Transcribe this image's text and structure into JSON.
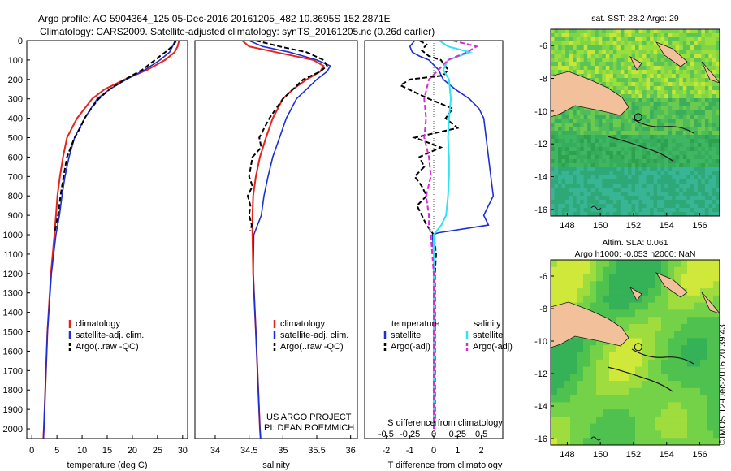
{
  "header": {
    "line1": "Argo profile: AO 5904364_125 05-Dec-2016 20161205_482 10.3695S 152.2871E",
    "line2": "Climatology: CARS2009. Satellite-adjusted climatology: synTS_20161205.nc (0.26d earlier)"
  },
  "depth_ticks": [
    0,
    100,
    200,
    300,
    400,
    500,
    600,
    700,
    800,
    900,
    1000,
    1100,
    1200,
    1300,
    1400,
    1500,
    1600,
    1700,
    1800,
    1900,
    2000
  ],
  "colors": {
    "climatology": "#e8231c",
    "satellite": "#1c2fd4",
    "argo": "#000000",
    "sal_satellite": "#2fe3f0",
    "sal_argo": "#d82ad6",
    "land": "#f2c09a",
    "map_sst_base": "#35b060",
    "map_sla_base": "#6ed84a"
  },
  "chart_data": [
    {
      "type": "line",
      "panel": "temperature",
      "xlabel": "temperature (deg C)",
      "ylabel": "",
      "xlim": [
        -1,
        31
      ],
      "ylim": [
        2050,
        0
      ],
      "xticks": [
        0,
        5,
        10,
        15,
        20,
        25,
        30
      ],
      "legend": [
        "climatology",
        "satellite-adj. clim.",
        "Argo(..raw -QC)"
      ],
      "series": [
        {
          "name": "climatology",
          "depth": [
            0,
            30,
            60,
            100,
            150,
            200,
            250,
            300,
            400,
            500,
            600,
            700,
            800,
            900,
            1000,
            1200,
            1500,
            2000,
            2050
          ],
          "values": [
            29.3,
            29.0,
            28.4,
            26.5,
            23.0,
            18.5,
            14.5,
            12.0,
            9.0,
            7.0,
            6.2,
            5.6,
            5.1,
            4.8,
            4.5,
            3.8,
            3.1,
            2.4,
            2.3
          ]
        },
        {
          "name": "satellite-adj. clim.",
          "depth": [
            0,
            30,
            60,
            100,
            150,
            200,
            250,
            300,
            400,
            500,
            600,
            700,
            800,
            900,
            1000,
            1200,
            1500,
            2000,
            2050
          ],
          "values": [
            28.5,
            28.0,
            27.4,
            25.5,
            22.5,
            18.8,
            15.5,
            13.0,
            10.5,
            8.5,
            7.4,
            6.6,
            6.0,
            5.5,
            4.8,
            3.9,
            3.1,
            2.4,
            2.3
          ]
        },
        {
          "name": "Argo(..raw -QC)",
          "depth": [
            0,
            20,
            50,
            80,
            110,
            150,
            200,
            250,
            300,
            350,
            400,
            450,
            500,
            600,
            700,
            800,
            900,
            980
          ],
          "values": [
            28.7,
            28.3,
            27.0,
            25.5,
            24.0,
            22.0,
            18.5,
            15.5,
            13.3,
            11.8,
            10.5,
            9.6,
            8.5,
            7.0,
            6.3,
            5.7,
            5.2,
            4.6
          ]
        }
      ]
    },
    {
      "type": "line",
      "panel": "salinity",
      "xlabel": "salinity",
      "ylabel": "",
      "xlim": [
        33.7,
        36.1
      ],
      "ylim": [
        2050,
        0
      ],
      "xticks": [
        34,
        34.5,
        35,
        35.5,
        36
      ],
      "legend": [
        "climatology",
        "satellite-adj. clim.",
        "Argo(..raw -QC)"
      ],
      "series": [
        {
          "name": "climatology",
          "depth": [
            0,
            30,
            60,
            100,
            130,
            160,
            200,
            250,
            300,
            400,
            500,
            600,
            700,
            800,
            900,
            1000,
            1200,
            1500,
            2000,
            2050
          ],
          "values": [
            34.4,
            34.5,
            34.9,
            35.45,
            35.6,
            35.55,
            35.35,
            35.15,
            35.0,
            34.85,
            34.75,
            34.66,
            34.6,
            34.56,
            34.55,
            34.55,
            34.56,
            34.6,
            34.66,
            34.67
          ]
        },
        {
          "name": "satellite-adj. clim.",
          "depth": [
            0,
            30,
            60,
            100,
            130,
            160,
            200,
            250,
            300,
            400,
            500,
            600,
            700,
            800,
            900,
            1000,
            1200,
            1500,
            2000,
            2050
          ],
          "values": [
            34.5,
            34.7,
            35.1,
            35.5,
            35.7,
            35.65,
            35.5,
            35.35,
            35.2,
            35.05,
            34.95,
            34.85,
            34.78,
            34.72,
            34.68,
            34.57,
            34.56,
            34.6,
            34.66,
            34.67
          ]
        },
        {
          "name": "Argo(..raw -QC)",
          "depth": [
            0,
            30,
            60,
            100,
            130,
            160,
            200,
            250,
            300,
            400,
            500,
            550,
            600,
            700,
            750,
            800,
            850,
            900,
            950,
            980
          ],
          "values": [
            34.6,
            34.95,
            35.35,
            35.6,
            35.65,
            35.55,
            35.3,
            35.15,
            35.0,
            34.8,
            34.65,
            34.68,
            34.55,
            34.5,
            34.55,
            34.48,
            34.52,
            34.5,
            34.54,
            34.52
          ]
        }
      ]
    },
    {
      "type": "line",
      "panel": "difference",
      "xlabel_top": "S difference from climatology",
      "xlabel": "T difference from climatology",
      "xlim": [
        -2.9,
        2.9
      ],
      "ylim": [
        2050,
        0
      ],
      "xticks_bottom": [
        -2,
        -1,
        0,
        1,
        2
      ],
      "xticks_top": [
        -0.5,
        -0.25,
        0,
        0.25,
        0.5
      ],
      "legend_temperature_title": "temperature",
      "legend_salinity_title": "salinity",
      "legend": [
        "satellite",
        "Argo(-adj)",
        "satellite",
        "Argo(-adj)"
      ],
      "series": [
        {
          "name": "temperature satellite",
          "depth": [
            0,
            30,
            60,
            80,
            100,
            150,
            200,
            250,
            300,
            350,
            400,
            500,
            600,
            700,
            800,
            900,
            950,
            990,
            1000,
            1100,
            1500,
            2000
          ],
          "values": [
            -0.8,
            -1.0,
            -0.9,
            -0.6,
            -0.2,
            0.2,
            0.4,
            0.9,
            1.5,
            1.9,
            2.1,
            2.2,
            2.3,
            2.4,
            2.5,
            2.1,
            2.3,
            0.2,
            -0.05,
            0,
            0,
            0
          ]
        },
        {
          "name": "temperature Argo(-adj)",
          "depth": [
            0,
            20,
            50,
            80,
            100,
            150,
            180,
            200,
            230,
            260,
            300,
            350,
            400,
            450,
            500,
            550,
            600,
            650,
            700,
            750,
            800,
            850,
            900,
            950,
            1000,
            1100,
            1200,
            1400,
            1600,
            1800,
            2000
          ],
          "values": [
            -0.6,
            -0.3,
            -0.5,
            -0.2,
            0.3,
            0.6,
            0.4,
            -1.0,
            -1.4,
            -0.9,
            -0.2,
            0.8,
            0.5,
            1.0,
            -0.8,
            0.3,
            -0.6,
            -0.4,
            -0.8,
            -0.5,
            -0.3,
            -0.7,
            -0.5,
            -0.3,
            0.0,
            0.1,
            0.05,
            0.05,
            0.05,
            0.05,
            0.05
          ]
        },
        {
          "name": "salinity satellite",
          "depth": [
            0,
            30,
            60,
            100,
            150,
            200,
            300,
            400,
            500,
            600,
            700,
            800,
            900,
            950,
            1000,
            1200,
            1500,
            2000
          ],
          "values": [
            0.06,
            0.15,
            0.38,
            0.15,
            0.1,
            0.16,
            0.18,
            0.16,
            0.15,
            0.16,
            0.16,
            0.15,
            0.13,
            0.08,
            0.0,
            0.0,
            0.0,
            0.0
          ]
        },
        {
          "name": "salinity Argo(-adj)",
          "depth": [
            0,
            30,
            60,
            100,
            150,
            200,
            300,
            400,
            500,
            600,
            700,
            800,
            900,
            950,
            1000,
            1200,
            1500,
            2000
          ],
          "values": [
            0.2,
            0.45,
            0.35,
            0.15,
            0.05,
            -0.05,
            -0.1,
            -0.08,
            -0.1,
            -0.05,
            -0.03,
            -0.08,
            -0.05,
            -0.05,
            -0.03,
            0.0,
            0.0,
            0.0
          ]
        }
      ]
    }
  ],
  "maps": {
    "sst_title": "sat. SST: 28.2 Argo: 29",
    "sla_title_line1": "Altim. SLA: 0.061",
    "sla_title_line2": "Argo h1000: -0.053 h2000: NaN",
    "lon_ticks": [
      148,
      150,
      152,
      154,
      156
    ],
    "lat_ticks": [
      -6,
      -8,
      -10,
      -12,
      -14,
      -16
    ],
    "lon_range": [
      147,
      157.2
    ],
    "lat_range": [
      -5,
      -16.4
    ]
  },
  "annotations": {
    "project_line1": "US ARGO PROJECT",
    "project_line2": "PI: DEAN ROEMMICH",
    "credit": "©IMOS 12-Dec-2016 20:39:43"
  }
}
